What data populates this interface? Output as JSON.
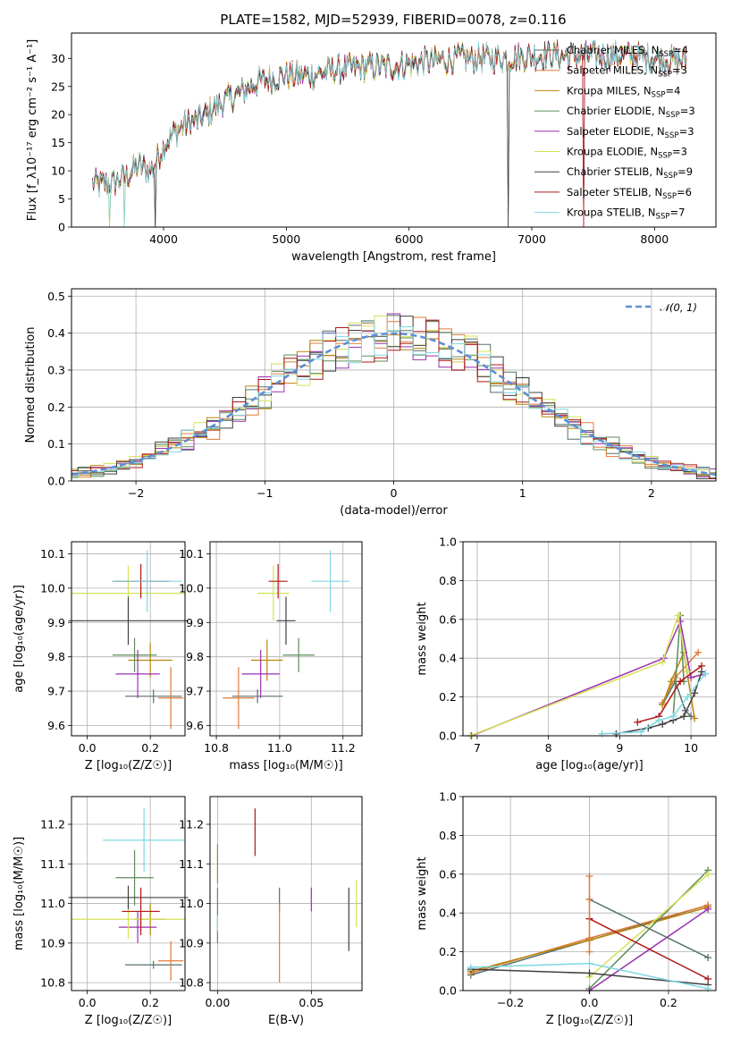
{
  "chart_data": [
    {
      "id": "spectrum",
      "type": "line",
      "title": "PLATE=1582, MJD=52939, FIBERID=0078, z=0.116",
      "xlabel": "wavelength [Angstrom, rest frame]",
      "ylabel": "Flux [f_λ10⁻¹⁷ erg cm⁻² s⁻¹ A⁻¹]",
      "xlim": [
        3250,
        8500
      ],
      "ylim": [
        0,
        34.5
      ],
      "xticks": [
        4000,
        5000,
        6000,
        7000,
        8000
      ],
      "yticks": [
        0,
        5,
        10,
        15,
        20,
        25,
        30
      ],
      "grid": false,
      "legend_position": "right",
      "continuum": {
        "x": [
          3420,
          3500,
          3600,
          3700,
          3800,
          3900,
          4000,
          4100,
          4200,
          4300,
          4400,
          4500,
          4600,
          4700,
          4800,
          4900,
          5000,
          5100,
          5200,
          5400,
          5600,
          5800,
          6000,
          6200,
          6400,
          6600,
          6800,
          7000,
          7200,
          7400,
          7600,
          7800,
          8000,
          8260
        ],
        "y": [
          7.8,
          7.5,
          8.0,
          9.0,
          11.0,
          10.0,
          14.5,
          17.0,
          18.5,
          19.0,
          21.0,
          22.5,
          23.5,
          25.0,
          26.0,
          26.5,
          27.0,
          27.0,
          27.0,
          28.0,
          28.5,
          28.5,
          29.0,
          29.5,
          30.0,
          30.0,
          30.0,
          30.5,
          30.5,
          30.5,
          30.5,
          30.5,
          30.0,
          29.5
        ]
      },
      "dips": [
        {
          "x": 3560,
          "y": 0
        },
        {
          "x": 3680,
          "y": 0
        },
        {
          "x": 3930,
          "y": 0
        },
        {
          "x": 6810,
          "y": 0
        },
        {
          "x": 7420,
          "y": 0
        }
      ],
      "series": [
        {
          "name": "Chabrier MILES, N_SSP=4",
          "label_main": "Chabrier MILES, N",
          "label_sub": "SSP",
          "label_tail": "=4",
          "color": "#56706c"
        },
        {
          "name": "Salpeter MILES, N_SSP=3",
          "label_main": "Salpeter MILES, N",
          "label_sub": "SSP",
          "label_tail": "=3",
          "color": "#e07b39"
        },
        {
          "name": "Kroupa MILES, N_SSP=4",
          "label_main": "Kroupa MILES, N",
          "label_sub": "SSP",
          "label_tail": "=4",
          "color": "#b8860b"
        },
        {
          "name": "Chabrier ELODIE, N_SSP=3",
          "label_main": "Chabrier ELODIE, N",
          "label_sub": "SSP",
          "label_tail": "=3",
          "color": "#5e8c5a"
        },
        {
          "name": "Salpeter ELODIE, N_SSP=3",
          "label_main": "Salpeter ELODIE, N",
          "label_sub": "SSP",
          "label_tail": "=3",
          "color": "#9b30b0"
        },
        {
          "name": "Kroupa ELODIE, N_SSP=3",
          "label_main": "Kroupa ELODIE, N",
          "label_sub": "SSP",
          "label_tail": "=3",
          "color": "#d4e157"
        },
        {
          "name": "Chabrier STELIB, N_SSP=9",
          "label_main": "Chabrier STELIB, N",
          "label_sub": "SSP",
          "label_tail": "=9",
          "color": "#404040"
        },
        {
          "name": "Salpeter STELIB, N_SSP=6",
          "label_main": "Salpeter STELIB, N",
          "label_sub": "SSP",
          "label_tail": "=6",
          "color": "#b01818"
        },
        {
          "name": "Kroupa STELIB, N_SSP=7",
          "label_main": "Kroupa STELIB, N",
          "label_sub": "SSP",
          "label_tail": "=7",
          "color": "#7fd8e0"
        }
      ]
    },
    {
      "id": "residuals",
      "type": "step",
      "title": "",
      "xlabel": "(data-model)/error",
      "ylabel": "Normed distribution",
      "xlim": [
        -2.5,
        2.5
      ],
      "ylim": [
        0,
        0.52
      ],
      "xticks": [
        -2,
        -1,
        0,
        1,
        2
      ],
      "yticks": [
        0.0,
        0.1,
        0.2,
        0.3,
        0.4,
        0.5
      ],
      "grid": true,
      "bin_width": 0.1,
      "reference_curve": {
        "name": "N(0,1)",
        "label": "𝒩(0, 1)",
        "color": "#5b8fd6",
        "style": "dashed"
      },
      "legend_position": "upper right"
    },
    {
      "id": "age-vs-Z",
      "type": "errorbar",
      "xlabel": "Z [log₁₀(Z/Z☉)]",
      "ylabel": "age  [log₁₀(age/yr)]",
      "xlim": [
        -0.05,
        0.31
      ],
      "ylim": [
        9.57,
        10.135
      ],
      "xticks": [
        0.0,
        0.2
      ],
      "yticks": [
        9.6,
        9.7,
        9.8,
        9.9,
        10.0,
        10.1
      ],
      "grid": true,
      "points": [
        {
          "x": 0.21,
          "xerr": 0.09,
          "y": 9.685,
          "yerr": 0.02
        },
        {
          "x": 0.265,
          "xerr": 0.04,
          "y": 9.68,
          "yerr": 0.09
        },
        {
          "x": 0.2,
          "xerr": 0.07,
          "y": 9.79,
          "yerr": 0.05
        },
        {
          "x": 0.15,
          "xerr": 0.07,
          "y": 9.805,
          "yerr": 0.05
        },
        {
          "x": 0.16,
          "xerr": 0.07,
          "y": 9.75,
          "yerr": 0.07
        },
        {
          "x": 0.13,
          "xerr": 0.18,
          "y": 9.985,
          "yerr": 0.08
        },
        {
          "x": 0.13,
          "xerr": 0.19,
          "y": 9.905,
          "yerr": 0.07
        },
        {
          "x": 0.17,
          "xerr": 0.09,
          "y": 10.02,
          "yerr": 0.05
        },
        {
          "x": 0.19,
          "xerr": 0.11,
          "y": 10.02,
          "yerr": 0.09
        }
      ]
    },
    {
      "id": "age-vs-mass",
      "type": "errorbar",
      "xlabel": "mass [log₁₀(M/M☉)]",
      "ylabel": "",
      "xlim": [
        10.78,
        11.26
      ],
      "ylim": [
        9.57,
        10.135
      ],
      "xticks": [
        10.8,
        11.0,
        11.2
      ],
      "yticks": [
        9.6,
        9.7,
        9.8,
        9.9,
        10.0,
        10.1
      ],
      "grid": true,
      "points": [
        {
          "x": 10.93,
          "xerr": 0.08,
          "y": 9.685,
          "yerr": 0.02
        },
        {
          "x": 10.87,
          "xerr": 0.05,
          "y": 9.68,
          "yerr": 0.09
        },
        {
          "x": 10.96,
          "xerr": 0.05,
          "y": 9.79,
          "yerr": 0.06
        },
        {
          "x": 11.06,
          "xerr": 0.05,
          "y": 9.805,
          "yerr": 0.05
        },
        {
          "x": 10.94,
          "xerr": 0.06,
          "y": 9.75,
          "yerr": 0.07
        },
        {
          "x": 10.98,
          "xerr": 0.05,
          "y": 9.985,
          "yerr": 0.08
        },
        {
          "x": 11.02,
          "xerr": 0.03,
          "y": 9.905,
          "yerr": 0.07
        },
        {
          "x": 10.995,
          "xerr": 0.03,
          "y": 10.02,
          "yerr": 0.05
        },
        {
          "x": 11.16,
          "xerr": 0.06,
          "y": 10.02,
          "yerr": 0.09
        }
      ]
    },
    {
      "id": "weight-vs-age",
      "type": "line",
      "xlabel": "age  [log₁₀(age/yr)]",
      "ylabel": "mass weight",
      "xlim": [
        6.8,
        10.35
      ],
      "ylim": [
        0.0,
        1.0
      ],
      "xticks": [
        7,
        8,
        9,
        10
      ],
      "yticks": [
        0.0,
        0.2,
        0.4,
        0.6,
        0.8,
        1.0
      ],
      "grid": true,
      "series": [
        {
          "x": [
            9.6,
            9.78,
            9.92,
            10.0
          ],
          "y": [
            0.16,
            0.28,
            0.13,
            0.1
          ]
        },
        {
          "x": [
            9.6,
            9.78,
            10.1
          ],
          "y": [
            0.17,
            0.3,
            0.43
          ]
        },
        {
          "x": [
            9.6,
            9.72,
            9.9,
            10.05
          ],
          "y": [
            0.16,
            0.28,
            0.43,
            0.09
          ]
        },
        {
          "x": [
            9.75,
            9.85,
            9.9
          ],
          "y": [
            0.1,
            0.62,
            0.28
          ]
        },
        {
          "x": [
            6.92,
            9.62,
            9.85,
            10.0,
            10.2
          ],
          "y": [
            0.0,
            0.4,
            0.59,
            0.3,
            0.32
          ]
        },
        {
          "x": [
            6.9,
            9.6,
            9.82,
            9.95
          ],
          "y": [
            0.0,
            0.38,
            0.62,
            0.33
          ]
        },
        {
          "x": [
            8.95,
            9.4,
            9.6,
            9.75,
            9.9,
            10.05,
            10.15
          ],
          "y": [
            0.01,
            0.04,
            0.06,
            0.08,
            0.1,
            0.22,
            0.33
          ]
        },
        {
          "x": [
            9.25,
            9.55,
            9.85,
            10.15
          ],
          "y": [
            0.07,
            0.1,
            0.28,
            0.36
          ]
        },
        {
          "x": [
            8.75,
            9.3,
            9.55,
            9.75,
            9.95,
            10.2
          ],
          "y": [
            0.01,
            0.02,
            0.08,
            0.1,
            0.2,
            0.32
          ]
        }
      ]
    },
    {
      "id": "mass-vs-Z",
      "type": "errorbar",
      "xlabel": "Z [log₁₀(Z/Z☉)]",
      "ylabel": "mass [log₁₀(M/M☉)]",
      "xlim": [
        -0.05,
        0.31
      ],
      "ylim": [
        10.78,
        11.27
      ],
      "xticks": [
        0.0,
        0.2
      ],
      "yticks": [
        10.8,
        10.9,
        11.0,
        11.1,
        11.2
      ],
      "grid": true,
      "points": [
        {
          "x": 0.21,
          "xerr": 0.09,
          "y": 10.845,
          "yerr": 0.01
        },
        {
          "x": 0.265,
          "xerr": 0.04,
          "y": 10.855,
          "yerr": 0.05
        },
        {
          "x": 0.2,
          "xerr": 0.05,
          "y": 10.96,
          "yerr": 0.04
        },
        {
          "x": 0.15,
          "xerr": 0.06,
          "y": 11.065,
          "yerr": 0.07
        },
        {
          "x": 0.16,
          "xerr": 0.06,
          "y": 10.94,
          "yerr": 0.04
        },
        {
          "x": 0.13,
          "xerr": 0.18,
          "y": 10.96,
          "yerr": 0.05
        },
        {
          "x": 0.13,
          "xerr": 0.19,
          "y": 11.015,
          "yerr": 0.03
        },
        {
          "x": 0.17,
          "xerr": 0.06,
          "y": 10.98,
          "yerr": 0.06
        },
        {
          "x": 0.18,
          "xerr": 0.13,
          "y": 11.16,
          "yerr": 0.08
        }
      ]
    },
    {
      "id": "mass-vs-ebv",
      "type": "errorbar",
      "xlabel": "E(B-V)",
      "ylabel": "",
      "xlim": [
        -0.004,
        0.077
      ],
      "ylim": [
        10.78,
        11.27
      ],
      "xticks": [
        0.0,
        0.05
      ],
      "yticks": [
        10.8,
        10.9,
        11.0,
        11.1,
        11.2
      ],
      "grid": true,
      "points": [
        {
          "x": 0.033,
          "y": 11.01,
          "yerr": 0.03
        },
        {
          "x": 0.033,
          "y": 10.9,
          "yerr": 0.1
        },
        {
          "x": 0.0,
          "y": 11.1,
          "yerr": 0.05
        },
        {
          "x": 0.0,
          "y": 10.97,
          "yerr": 0.07
        },
        {
          "x": 0.05,
          "y": 11.01,
          "yerr": 0.03
        },
        {
          "x": 0.074,
          "y": 11.0,
          "yerr": 0.06
        },
        {
          "x": 0.07,
          "y": 10.96,
          "yerr": 0.08
        },
        {
          "x": 0.02,
          "y": 11.18,
          "yerr": 0.06
        },
        {
          "x": 0.0,
          "y": 10.95,
          "yerr": 0.02
        }
      ]
    },
    {
      "id": "weight-vs-Z",
      "type": "line",
      "xlabel": "Z [log₁₀(Z/Z☉)]",
      "ylabel": "mass weight",
      "xlim": [
        -0.32,
        0.32
      ],
      "ylim": [
        0.0,
        1.0
      ],
      "xticks": [
        -0.2,
        0.0,
        0.2
      ],
      "yticks": [
        0.0,
        0.2,
        0.4,
        0.6,
        0.8,
        1.0
      ],
      "grid": true,
      "series": [
        {
          "x": [
            -0.3,
            0.0,
            0.3
          ],
          "y": [
            0.08,
            0.26,
            0.44
          ]
        },
        {
          "x": [
            -0.3,
            0.0,
            0.3
          ],
          "y": [
            0.09,
            0.27,
            0.44
          ]
        },
        {
          "x": [
            -0.3,
            0.0,
            0.3
          ],
          "y": [
            0.1,
            0.26,
            0.43
          ]
        },
        {
          "x": [
            0.0,
            0.3
          ],
          "y": [
            0.01,
            0.62
          ]
        },
        {
          "x": [
            0.0,
            0.3
          ],
          "y": [
            0.0,
            0.42
          ]
        },
        {
          "x": [
            0.0,
            0.3
          ],
          "y": [
            0.07,
            0.6
          ]
        },
        {
          "x": [
            -0.3,
            0.0,
            0.3
          ],
          "y": [
            0.11,
            0.09,
            0.03
          ]
        },
        {
          "x": [
            0.0,
            0.3
          ],
          "y": [
            0.37,
            0.06
          ]
        },
        {
          "x": [
            -0.3,
            0.0,
            0.3
          ],
          "y": [
            0.12,
            0.14,
            0.01
          ]
        },
        {
          "x": [
            0.0,
            0.3
          ],
          "y": [
            0.47,
            0.17
          ]
        },
        {
          "x": [
            0.0,
            0.0,
            0.0
          ],
          "y": [
            0.59,
            0.47,
            0.2
          ]
        }
      ]
    }
  ]
}
